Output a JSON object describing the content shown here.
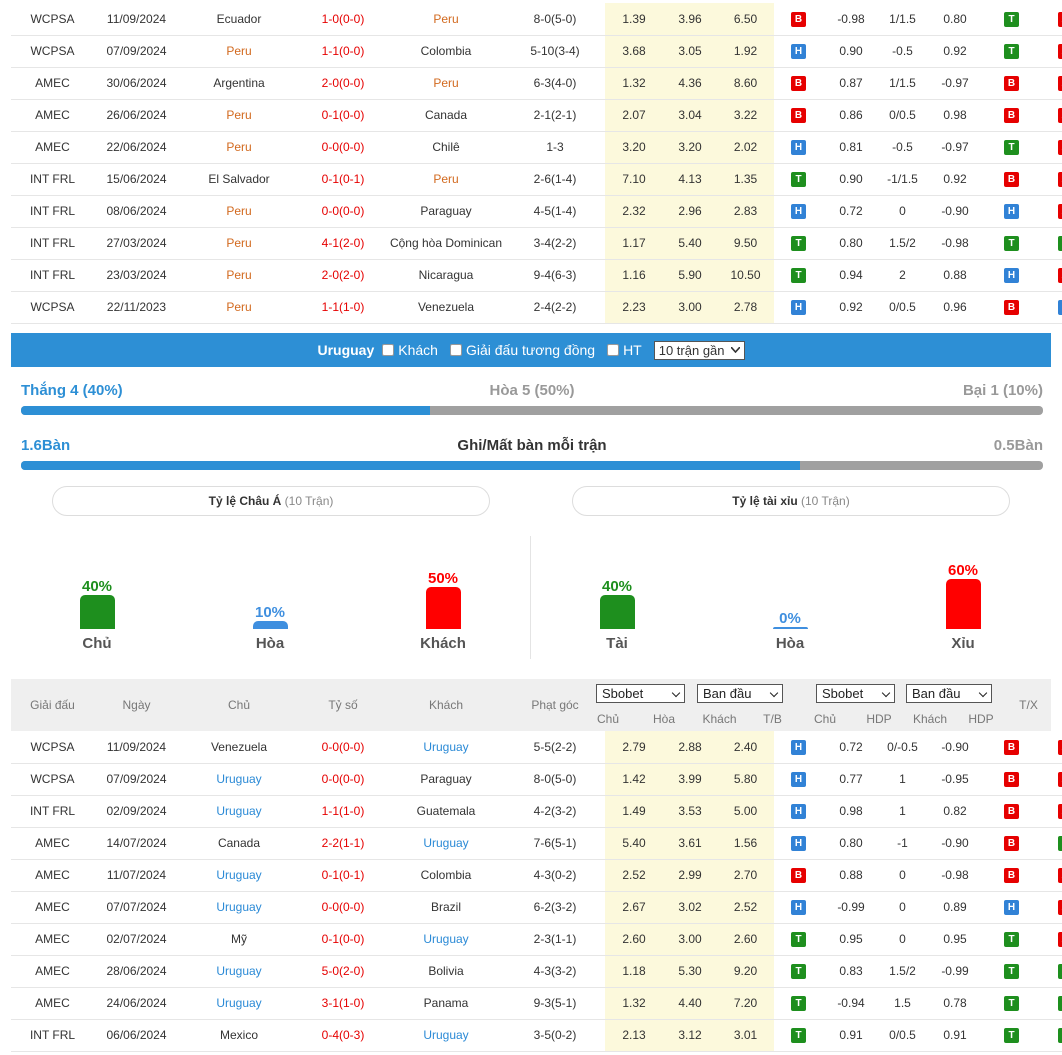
{
  "top_matches": [
    {
      "league": "WCPSA",
      "date": "11/09/2024",
      "home": "Ecuador",
      "score": "1-0(0-0)",
      "away": "Peru",
      "corner": "8-0(5-0)",
      "o1": "1.39",
      "o2": "3.96",
      "o3": "6.50",
      "r1": "B",
      "a1": "-0.98",
      "hdp": "1/1.5",
      "a2": "0.80",
      "r2": "T",
      "r3": "X",
      "homeHl": false,
      "awayHl": true,
      "scoreRed": true
    },
    {
      "league": "WCPSA",
      "date": "07/09/2024",
      "home": "Peru",
      "score": "1-1(0-0)",
      "away": "Colombia",
      "corner": "5-10(3-4)",
      "o1": "3.68",
      "o2": "3.05",
      "o3": "1.92",
      "r1": "H",
      "a1": "0.90",
      "hdp": "-0.5",
      "a2": "0.92",
      "r2": "T",
      "r3": "X",
      "homeHl": true,
      "awayHl": false,
      "scoreRed": true
    },
    {
      "league": "AMEC",
      "date": "30/06/2024",
      "home": "Argentina",
      "score": "2-0(0-0)",
      "away": "Peru",
      "corner": "6-3(4-0)",
      "o1": "1.32",
      "o2": "4.36",
      "o3": "8.60",
      "r1": "B",
      "a1": "0.87",
      "hdp": "1/1.5",
      "a2": "-0.97",
      "r2": "B",
      "r3": "X",
      "homeHl": false,
      "awayHl": true,
      "scoreRed": true
    },
    {
      "league": "AMEC",
      "date": "26/06/2024",
      "home": "Peru",
      "score": "0-1(0-0)",
      "away": "Canada",
      "corner": "2-1(2-1)",
      "o1": "2.07",
      "o2": "3.04",
      "o3": "3.22",
      "r1": "B",
      "a1": "0.86",
      "hdp": "0/0.5",
      "a2": "0.98",
      "r2": "B",
      "r3": "X",
      "homeHl": true,
      "awayHl": false,
      "scoreRed": true
    },
    {
      "league": "AMEC",
      "date": "22/06/2024",
      "home": "Peru",
      "score": "0-0(0-0)",
      "away": "Chilê",
      "corner": "1-3",
      "o1": "3.20",
      "o2": "3.20",
      "o3": "2.02",
      "r1": "H",
      "a1": "0.81",
      "hdp": "-0.5",
      "a2": "-0.97",
      "r2": "T",
      "r3": "X",
      "homeHl": true,
      "awayHl": false,
      "scoreRed": true
    },
    {
      "league": "INT FRL",
      "date": "15/06/2024",
      "home": "El Salvador",
      "score": "0-1(0-1)",
      "away": "Peru",
      "corner": "2-6(1-4)",
      "o1": "7.10",
      "o2": "4.13",
      "o3": "1.35",
      "r1": "T",
      "a1": "0.90",
      "hdp": "-1/1.5",
      "a2": "0.92",
      "r2": "B",
      "r3": "X",
      "homeHl": false,
      "awayHl": true,
      "scoreRed": true
    },
    {
      "league": "INT FRL",
      "date": "08/06/2024",
      "home": "Peru",
      "score": "0-0(0-0)",
      "away": "Paraguay",
      "corner": "4-5(1-4)",
      "o1": "2.32",
      "o2": "2.96",
      "o3": "2.83",
      "r1": "H",
      "a1": "0.72",
      "hdp": "0",
      "a2": "-0.90",
      "r2": "H",
      "r3": "X",
      "homeHl": true,
      "awayHl": false,
      "scoreRed": true
    },
    {
      "league": "INT FRL",
      "date": "27/03/2024",
      "home": "Peru",
      "score": "4-1(2-0)",
      "away": "Cộng hòa Dominican",
      "corner": "3-4(2-2)",
      "o1": "1.17",
      "o2": "5.40",
      "o3": "9.50",
      "r1": "T",
      "a1": "0.80",
      "hdp": "1.5/2",
      "a2": "-0.98",
      "r2": "T",
      "r3": "T",
      "homeHl": true,
      "awayHl": false,
      "scoreRed": true
    },
    {
      "league": "INT FRL",
      "date": "23/03/2024",
      "home": "Peru",
      "score": "2-0(2-0)",
      "away": "Nicaragua",
      "corner": "9-4(6-3)",
      "o1": "1.16",
      "o2": "5.90",
      "o3": "10.50",
      "r1": "T",
      "a1": "0.94",
      "hdp": "2",
      "a2": "0.88",
      "r2": "H",
      "r3": "X",
      "homeHl": true,
      "awayHl": false,
      "scoreRed": true
    },
    {
      "league": "WCPSA",
      "date": "22/11/2023",
      "home": "Peru",
      "score": "1-1(1-0)",
      "away": "Venezuela",
      "corner": "2-4(2-2)",
      "o1": "2.23",
      "o2": "3.00",
      "o3": "2.78",
      "r1": "H",
      "a1": "0.92",
      "hdp": "0/0.5",
      "a2": "0.96",
      "r2": "B",
      "r3": "H",
      "homeHl": true,
      "awayHl": false,
      "scoreRed": true
    }
  ],
  "filter": {
    "team": "Uruguay",
    "opt1": "Khách",
    "opt2": "Giải đấu tương đồng",
    "opt3": "HT",
    "select": "10 trận gần"
  },
  "summary": {
    "win": "Thắng 4 (40%)",
    "draw": "Hòa 5 (50%)",
    "lose": "Bại 1 (10%)",
    "win_frac": 0.4,
    "goals_for": "1.6Bàn",
    "goals_title": "Ghi/Mất bàn mỗi trận",
    "goals_against": "0.5Bàn",
    "goals_frac": 0.762
  },
  "asian": {
    "title": "Tỷ lệ Châu Á",
    "sub": "(10 Trận)",
    "items": [
      {
        "pct": "40%",
        "label": "Chủ",
        "value": 40,
        "color": "#1e8f1e"
      },
      {
        "pct": "10%",
        "label": "Hòa",
        "value": 10,
        "color": "#3f8fdf"
      },
      {
        "pct": "50%",
        "label": "Khách",
        "value": 50,
        "color": "#ff0000"
      }
    ]
  },
  "ou": {
    "title": "Tỷ lệ tài xỉu",
    "sub": "(10 Trận)",
    "items": [
      {
        "pct": "40%",
        "label": "Tài",
        "value": 40,
        "color": "#1e8f1e"
      },
      {
        "pct": "0%",
        "label": "Hòa",
        "value": 0,
        "color": "#3f8fdf"
      },
      {
        "pct": "60%",
        "label": "Xỉu",
        "value": 60,
        "color": "#ff0000"
      }
    ]
  },
  "header": {
    "league": "Giải đấu",
    "date": "Ngày",
    "home": "Chủ",
    "score": "Tỷ số",
    "away": "Khách",
    "corner": "Phạt góc",
    "dd1": "Sbobet",
    "dd2": "Ban đầu",
    "dd3": "Sbobet",
    "dd4": "Ban đầu",
    "h1": "Chủ",
    "h2": "Hòa",
    "h3": "Khách",
    "tb": "T/B",
    "a1": "Chủ",
    "hdp": "HDP",
    "a2": "Khách",
    "hdp2": "HDP",
    "tx": "T/X"
  },
  "bottom_matches": [
    {
      "league": "WCPSA",
      "date": "11/09/2024",
      "home": "Venezuela",
      "score": "0-0(0-0)",
      "away": "Uruguay",
      "corner": "5-5(2-2)",
      "o1": "2.79",
      "o2": "2.88",
      "o3": "2.40",
      "r1": "H",
      "a1": "0.72",
      "hdp": "0/-0.5",
      "a2": "-0.90",
      "r2": "B",
      "r3": "X",
      "homeHl": false,
      "awayHl": true
    },
    {
      "league": "WCPSA",
      "date": "07/09/2024",
      "home": "Uruguay",
      "score": "0-0(0-0)",
      "away": "Paraguay",
      "corner": "8-0(5-0)",
      "o1": "1.42",
      "o2": "3.99",
      "o3": "5.80",
      "r1": "H",
      "a1": "0.77",
      "hdp": "1",
      "a2": "-0.95",
      "r2": "B",
      "r3": "X",
      "homeHl": true,
      "awayHl": false
    },
    {
      "league": "INT FRL",
      "date": "02/09/2024",
      "home": "Uruguay",
      "score": "1-1(1-0)",
      "away": "Guatemala",
      "corner": "4-2(3-2)",
      "o1": "1.49",
      "o2": "3.53",
      "o3": "5.00",
      "r1": "H",
      "a1": "0.98",
      "hdp": "1",
      "a2": "0.82",
      "r2": "B",
      "r3": "X",
      "homeHl": true,
      "awayHl": false
    },
    {
      "league": "AMEC",
      "date": "14/07/2024",
      "home": "Canada",
      "score": "2-2(1-1)",
      "away": "Uruguay",
      "corner": "7-6(5-1)",
      "o1": "5.40",
      "o2": "3.61",
      "o3": "1.56",
      "r1": "H",
      "a1": "0.80",
      "hdp": "-1",
      "a2": "-0.90",
      "r2": "B",
      "r3": "T",
      "homeHl": false,
      "awayHl": true
    },
    {
      "league": "AMEC",
      "date": "11/07/2024",
      "home": "Uruguay",
      "score": "0-1(0-1)",
      "away": "Colombia",
      "corner": "4-3(0-2)",
      "o1": "2.52",
      "o2": "2.99",
      "o3": "2.70",
      "r1": "B",
      "a1": "0.88",
      "hdp": "0",
      "a2": "-0.98",
      "r2": "B",
      "r3": "X",
      "homeHl": true,
      "awayHl": false
    },
    {
      "league": "AMEC",
      "date": "07/07/2024",
      "home": "Uruguay",
      "score": "0-0(0-0)",
      "away": "Brazil",
      "corner": "6-2(3-2)",
      "o1": "2.67",
      "o2": "3.02",
      "o3": "2.52",
      "r1": "H",
      "a1": "-0.99",
      "hdp": "0",
      "a2": "0.89",
      "r2": "H",
      "r3": "X",
      "homeHl": true,
      "awayHl": false
    },
    {
      "league": "AMEC",
      "date": "02/07/2024",
      "home": "Mỹ",
      "score": "0-1(0-0)",
      "away": "Uruguay",
      "corner": "2-3(1-1)",
      "o1": "2.60",
      "o2": "3.00",
      "o3": "2.60",
      "r1": "T",
      "a1": "0.95",
      "hdp": "0",
      "a2": "0.95",
      "r2": "T",
      "r3": "X",
      "homeHl": false,
      "awayHl": true
    },
    {
      "league": "AMEC",
      "date": "28/06/2024",
      "home": "Uruguay",
      "score": "5-0(2-0)",
      "away": "Bolivia",
      "corner": "4-3(3-2)",
      "o1": "1.18",
      "o2": "5.30",
      "o3": "9.20",
      "r1": "T",
      "a1": "0.83",
      "hdp": "1.5/2",
      "a2": "-0.99",
      "r2": "T",
      "r3": "T",
      "homeHl": true,
      "awayHl": false
    },
    {
      "league": "AMEC",
      "date": "24/06/2024",
      "home": "Uruguay",
      "score": "3-1(1-0)",
      "away": "Panama",
      "corner": "9-3(5-1)",
      "o1": "1.32",
      "o2": "4.40",
      "o3": "7.20",
      "r1": "T",
      "a1": "-0.94",
      "hdp": "1.5",
      "a2": "0.78",
      "r2": "T",
      "r3": "T",
      "homeHl": true,
      "awayHl": false
    },
    {
      "league": "INT FRL",
      "date": "06/06/2024",
      "home": "Mexico",
      "score": "0-4(0-3)",
      "away": "Uruguay",
      "corner": "3-5(0-2)",
      "o1": "2.13",
      "o2": "3.12",
      "o3": "3.01",
      "r1": "T",
      "a1": "0.91",
      "hdp": "0/0.5",
      "a2": "0.91",
      "r2": "T",
      "r3": "T",
      "homeHl": false,
      "awayHl": true
    }
  ]
}
